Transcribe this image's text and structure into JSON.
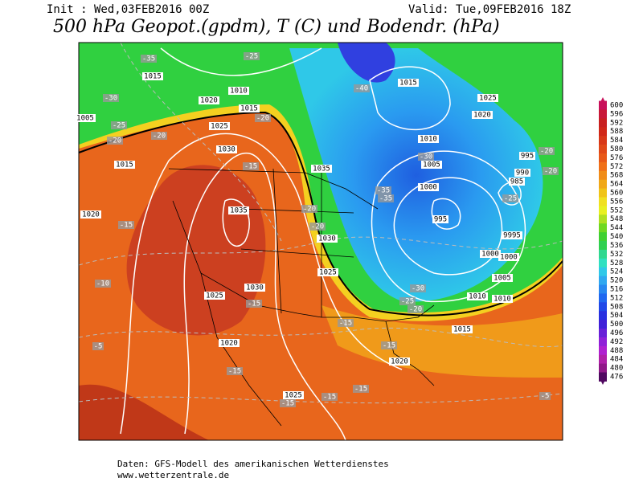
{
  "header": {
    "init": "Init : Wed,03FEB2016 00Z",
    "valid": "Valid: Tue,09FEB2016 18Z",
    "title": "500 hPa Geopot.(gpdm), T (C) und Bodendr. (hPa)"
  },
  "scale": [
    600,
    596,
    592,
    588,
    584,
    580,
    576,
    572,
    568,
    564,
    560,
    556,
    552,
    548,
    544,
    540,
    536,
    532,
    528,
    524,
    520,
    516,
    512,
    508,
    504,
    500,
    496,
    492,
    488,
    484,
    480,
    476
  ],
  "footer": [
    "Daten: GFS-Modell des amerikanischen Wetterdienstes",
    "www.wetterzentrale.de"
  ],
  "isobar_labels": [
    "1015",
    "1010",
    "1020",
    "1015",
    "1025",
    "1030",
    "1015",
    "1035",
    "1020",
    "1030",
    "1025",
    "1030",
    "1025",
    "1020",
    "1025",
    "1020",
    "1015",
    "1010",
    "1010",
    "1005",
    "1000",
    "1000",
    "9995",
    "995",
    "1000",
    "1005",
    "1010",
    "1015",
    "1025",
    "1020",
    "1035",
    "995",
    "990",
    "985",
    "1005"
  ],
  "temp_labels": [
    "-35",
    "-25",
    "-30",
    "-25",
    "-20",
    "-20",
    "-20",
    "-15",
    "-20",
    "-20",
    "-40",
    "-30",
    "-35",
    "-35",
    "-25",
    "-20",
    "-20",
    "-15",
    "-10",
    "-15",
    "-15",
    "-15",
    "-30",
    "-25",
    "-20",
    "-15",
    "-15",
    "-15",
    "-15",
    "-5",
    "-5"
  ]
}
